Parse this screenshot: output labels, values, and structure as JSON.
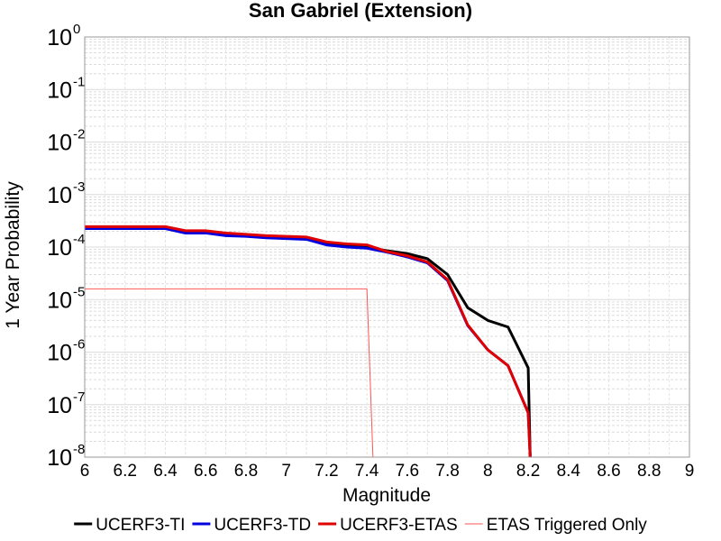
{
  "chart_data": {
    "type": "line",
    "title": "San Gabriel (Extension)",
    "xlabel": "Magnitude",
    "ylabel": "1 Year Probability",
    "xlim": [
      6,
      9
    ],
    "ylim": [
      1e-08,
      1
    ],
    "yscale": "log",
    "grid": true,
    "legend_position": "bottom",
    "xticks": [
      "6",
      "6.2",
      "6.4",
      "6.6",
      "6.8",
      "7",
      "7.2",
      "7.4",
      "7.6",
      "7.8",
      "8",
      "8.2",
      "8.4",
      "8.6",
      "8.8",
      "9"
    ],
    "yticks": [
      {
        "base": "10",
        "exp": "0"
      },
      {
        "base": "10",
        "exp": "-1"
      },
      {
        "base": "10",
        "exp": "-2"
      },
      {
        "base": "10",
        "exp": "-3"
      },
      {
        "base": "10",
        "exp": "-4"
      },
      {
        "base": "10",
        "exp": "-5"
      },
      {
        "base": "10",
        "exp": "-6"
      },
      {
        "base": "10",
        "exp": "-7"
      },
      {
        "base": "10",
        "exp": "-8"
      }
    ],
    "series": [
      {
        "name": "UCERF3-TI",
        "color": "#000000",
        "x": [
          6.0,
          6.1,
          6.2,
          6.3,
          6.4,
          6.5,
          6.6,
          6.7,
          6.8,
          6.9,
          7.0,
          7.1,
          7.2,
          7.3,
          7.4,
          7.5,
          7.6,
          7.7,
          7.8,
          7.9,
          8.0,
          8.1,
          8.2,
          8.21
        ],
        "y": [
          0.00023,
          0.00023,
          0.00023,
          0.00023,
          0.00023,
          0.00019,
          0.00019,
          0.00017,
          0.000165,
          0.000155,
          0.00015,
          0.000145,
          0.000115,
          0.000105,
          0.0001,
          8.5e-05,
          7.5e-05,
          6e-05,
          3e-05,
          7e-06,
          4e-06,
          3e-06,
          5e-07,
          1e-08
        ]
      },
      {
        "name": "UCERF3-TD",
        "color": "#0000e0",
        "x": [
          6.0,
          6.1,
          6.2,
          6.3,
          6.4,
          6.5,
          6.6,
          6.7,
          6.8,
          6.9,
          7.0,
          7.1,
          7.2,
          7.3,
          7.4,
          7.5,
          7.6,
          7.7,
          7.8,
          7.9,
          8.0,
          8.1,
          8.2,
          8.21
        ],
        "y": [
          0.000225,
          0.000225,
          0.000225,
          0.000225,
          0.000225,
          0.000185,
          0.000185,
          0.000165,
          0.00016,
          0.00015,
          0.000145,
          0.00014,
          0.00011,
          0.0001,
          9.5e-05,
          8e-05,
          6.5e-05,
          5e-05,
          2.3e-05,
          3.2e-06,
          1.1e-06,
          5.5e-07,
          7e-08,
          1e-08
        ]
      },
      {
        "name": "UCERF3-ETAS",
        "color": "#e00000",
        "x": [
          6.0,
          6.1,
          6.2,
          6.3,
          6.4,
          6.5,
          6.6,
          6.7,
          6.8,
          6.9,
          7.0,
          7.1,
          7.2,
          7.3,
          7.4,
          7.5,
          7.6,
          7.7,
          7.8,
          7.9,
          8.0,
          8.1,
          8.2,
          8.21
        ],
        "y": [
          0.000245,
          0.000245,
          0.000245,
          0.000245,
          0.000245,
          0.000205,
          0.000205,
          0.000185,
          0.000175,
          0.000165,
          0.00016,
          0.000155,
          0.000125,
          0.000115,
          0.00011,
          8.2e-05,
          6.8e-05,
          5.2e-05,
          2.4e-05,
          3.3e-06,
          1.1e-06,
          5.5e-07,
          7e-08,
          1e-08
        ]
      },
      {
        "name": "ETAS Triggered Only",
        "color": "#ff5555",
        "x": [
          6.0,
          6.1,
          6.2,
          6.3,
          6.4,
          6.5,
          6.6,
          6.7,
          6.8,
          6.9,
          7.0,
          7.1,
          7.2,
          7.3,
          7.4,
          7.43
        ],
        "y": [
          1.6e-05,
          1.6e-05,
          1.6e-05,
          1.6e-05,
          1.6e-05,
          1.6e-05,
          1.6e-05,
          1.6e-05,
          1.6e-05,
          1.6e-05,
          1.6e-05,
          1.6e-05,
          1.6e-05,
          1.6e-05,
          1.6e-05,
          1e-08
        ]
      }
    ]
  }
}
